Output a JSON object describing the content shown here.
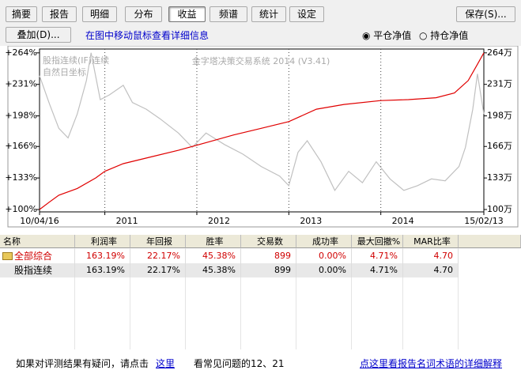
{
  "tabs": [
    "摘要",
    "报告",
    "明细",
    "分布",
    "收益",
    "频谱",
    "统计",
    "设定"
  ],
  "save": "保存(S)...",
  "overlay": "叠加(D)...",
  "hint": "在图中移动鼠标查看详细信息",
  "radios": [
    "平仓净值",
    "持仓净值"
  ],
  "chart_data": {
    "type": "line",
    "title": "金字塔决策交易系统 2014 (V3.41)",
    "subtitle": "自然日坐标",
    "xlim": [
      2010.29,
      2015.12
    ],
    "xticks": [
      {
        "value": 2010.29,
        "label": "10/04/16"
      },
      2011,
      2012,
      2013,
      2014,
      {
        "value": 2015.12,
        "label": "15/02/13"
      }
    ],
    "ylim": [
      97.5,
      268
    ],
    "yticks": [
      {
        "value": 100,
        "label": "+100%"
      },
      {
        "value": 133,
        "label": "+133%"
      },
      {
        "value": 166,
        "label": "+166%"
      },
      {
        "value": 198,
        "label": "+198%"
      },
      {
        "value": 231,
        "label": "+231%"
      },
      {
        "value": 264,
        "label": "+264%"
      }
    ],
    "y2lim": [
      97.5,
      268
    ],
    "y2ticks": [
      {
        "value": 100,
        "label": "100万"
      },
      {
        "value": 133,
        "label": "133万"
      },
      {
        "value": 166,
        "label": "166万"
      },
      {
        "value": 198,
        "label": "198万"
      },
      {
        "value": 231,
        "label": "231万"
      },
      {
        "value": 264,
        "label": "264万"
      }
    ],
    "grid": true,
    "series": [
      {
        "name": "股指连续(IF)连续",
        "color": "#c0c0c0",
        "x": [
          2010.29,
          2010.4,
          2010.5,
          2010.6,
          2010.7,
          2010.8,
          2010.85,
          2010.95,
          2011.05,
          2011.2,
          2011.3,
          2011.45,
          2011.6,
          2011.8,
          2011.95,
          2012.1,
          2012.3,
          2012.5,
          2012.7,
          2012.9,
          2013.0,
          2013.1,
          2013.2,
          2013.35,
          2013.5,
          2013.65,
          2013.8,
          2013.95,
          2014.1,
          2014.25,
          2014.4,
          2014.55,
          2014.7,
          2014.85,
          2014.92,
          2015.0,
          2015.05,
          2015.12
        ],
        "values": [
          240,
          210,
          185,
          175,
          200,
          235,
          264,
          215,
          220,
          230,
          212,
          205,
          195,
          180,
          165,
          180,
          168,
          158,
          145,
          135,
          125,
          160,
          172,
          150,
          120,
          140,
          128,
          150,
          132,
          120,
          125,
          132,
          130,
          145,
          165,
          205,
          242,
          200
        ]
      },
      {
        "color": "#e00000",
        "x": [
          2010.29,
          2010.4,
          2010.5,
          2010.7,
          2010.9,
          2011.0,
          2011.2,
          2011.5,
          2011.8,
          2012.1,
          2012.4,
          2012.7,
          2013.0,
          2013.3,
          2013.6,
          2014.0,
          2014.3,
          2014.6,
          2014.8,
          2014.95,
          2015.05,
          2015.12
        ],
        "values": [
          100,
          108,
          115,
          122,
          133,
          140,
          148,
          155,
          162,
          170,
          178,
          185,
          192,
          205,
          210,
          214,
          215,
          217,
          222,
          235,
          252,
          264
        ]
      }
    ]
  },
  "table": {
    "columns": [
      "名称",
      "利润率",
      "年回报",
      "胜率",
      "交易数",
      "成功率",
      "最大回撤%",
      "MAR比率"
    ],
    "rows": [
      [
        "全部综合",
        "163.19%",
        "22.17%",
        "45.38%",
        "899",
        "0.00%",
        "4.71%",
        "4.70"
      ],
      [
        "股指连续",
        "163.19%",
        "22.17%",
        "45.38%",
        "899",
        "0.00%",
        "4.71%",
        "4.70"
      ]
    ]
  },
  "footer": {
    "question": "如果对评测结果有疑问，请点击",
    "here": "这里",
    "faq": "看常见问题的12、21",
    "glossary": "点这里看报告名词术语的详细解释"
  }
}
